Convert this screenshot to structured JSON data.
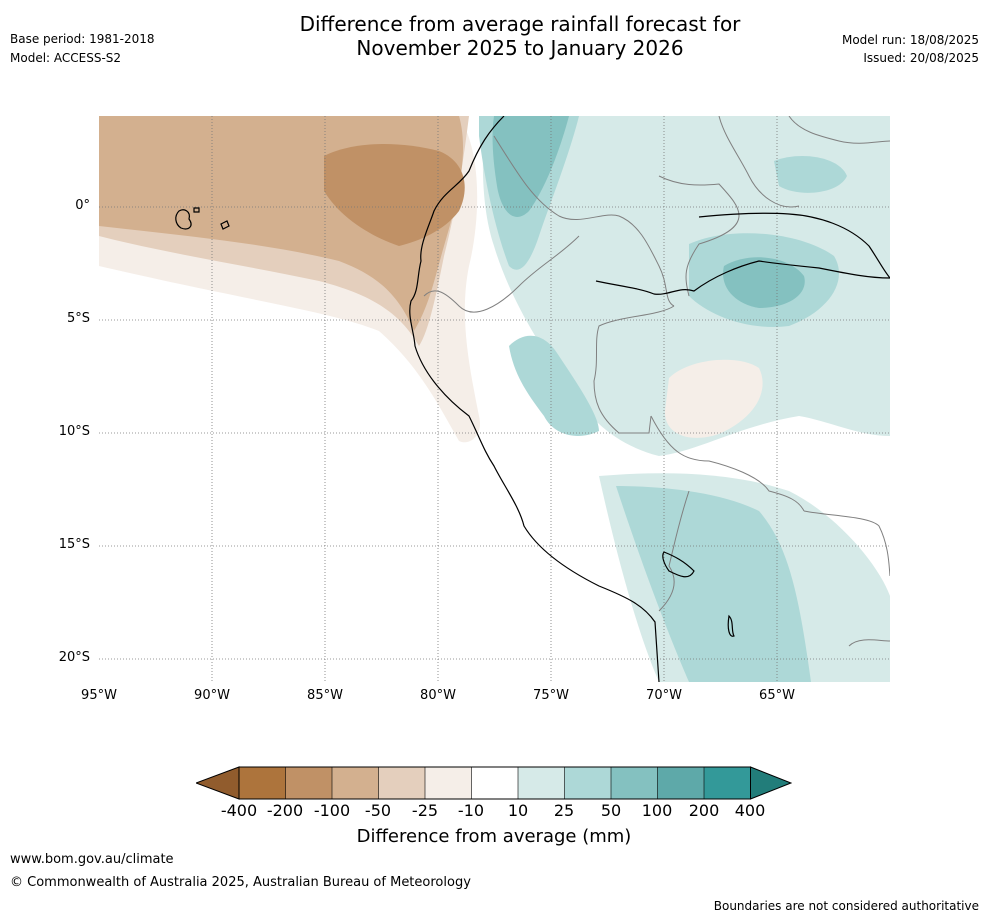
{
  "header": {
    "title_line1": "Difference from average rainfall forecast for",
    "title_line2": "November 2025 to January 2026",
    "base_period": "Base period: 1981-2018",
    "model": "Model: ACCESS-S2",
    "model_run": "Model run: 18/08/2025",
    "issued": "Issued: 20/08/2025"
  },
  "map": {
    "lon_ticks": [
      "95°W",
      "90°W",
      "85°W",
      "80°W",
      "75°W",
      "70°W",
      "65°W"
    ],
    "lat_ticks": [
      "0°",
      "5°S",
      "10°S",
      "15°S",
      "20°S"
    ],
    "extent": {
      "lon": [
        -95,
        -60
      ],
      "lat": [
        -21,
        4
      ]
    }
  },
  "colorbar": {
    "title": "Difference from average (mm)",
    "labels": [
      "-400",
      "-200",
      "-100",
      "-50",
      "-25",
      "-10",
      "10",
      "25",
      "50",
      "100",
      "200",
      "400"
    ],
    "colors": [
      "#915c2d",
      "#ad743c",
      "#c09166",
      "#d3b08f",
      "#e4cfbd",
      "#f5eee8",
      "#ffffff",
      "#d6eae8",
      "#add8d7",
      "#84c1c0",
      "#5ea9a9",
      "#339999",
      "#227d7a"
    ]
  },
  "footer": {
    "website": "www.bom.gov.au/climate",
    "copyright": "© Commonwealth of Australia 2025, Australian Bureau of Meteorology",
    "disclaimer": "Boundaries are not considered authoritative"
  }
}
